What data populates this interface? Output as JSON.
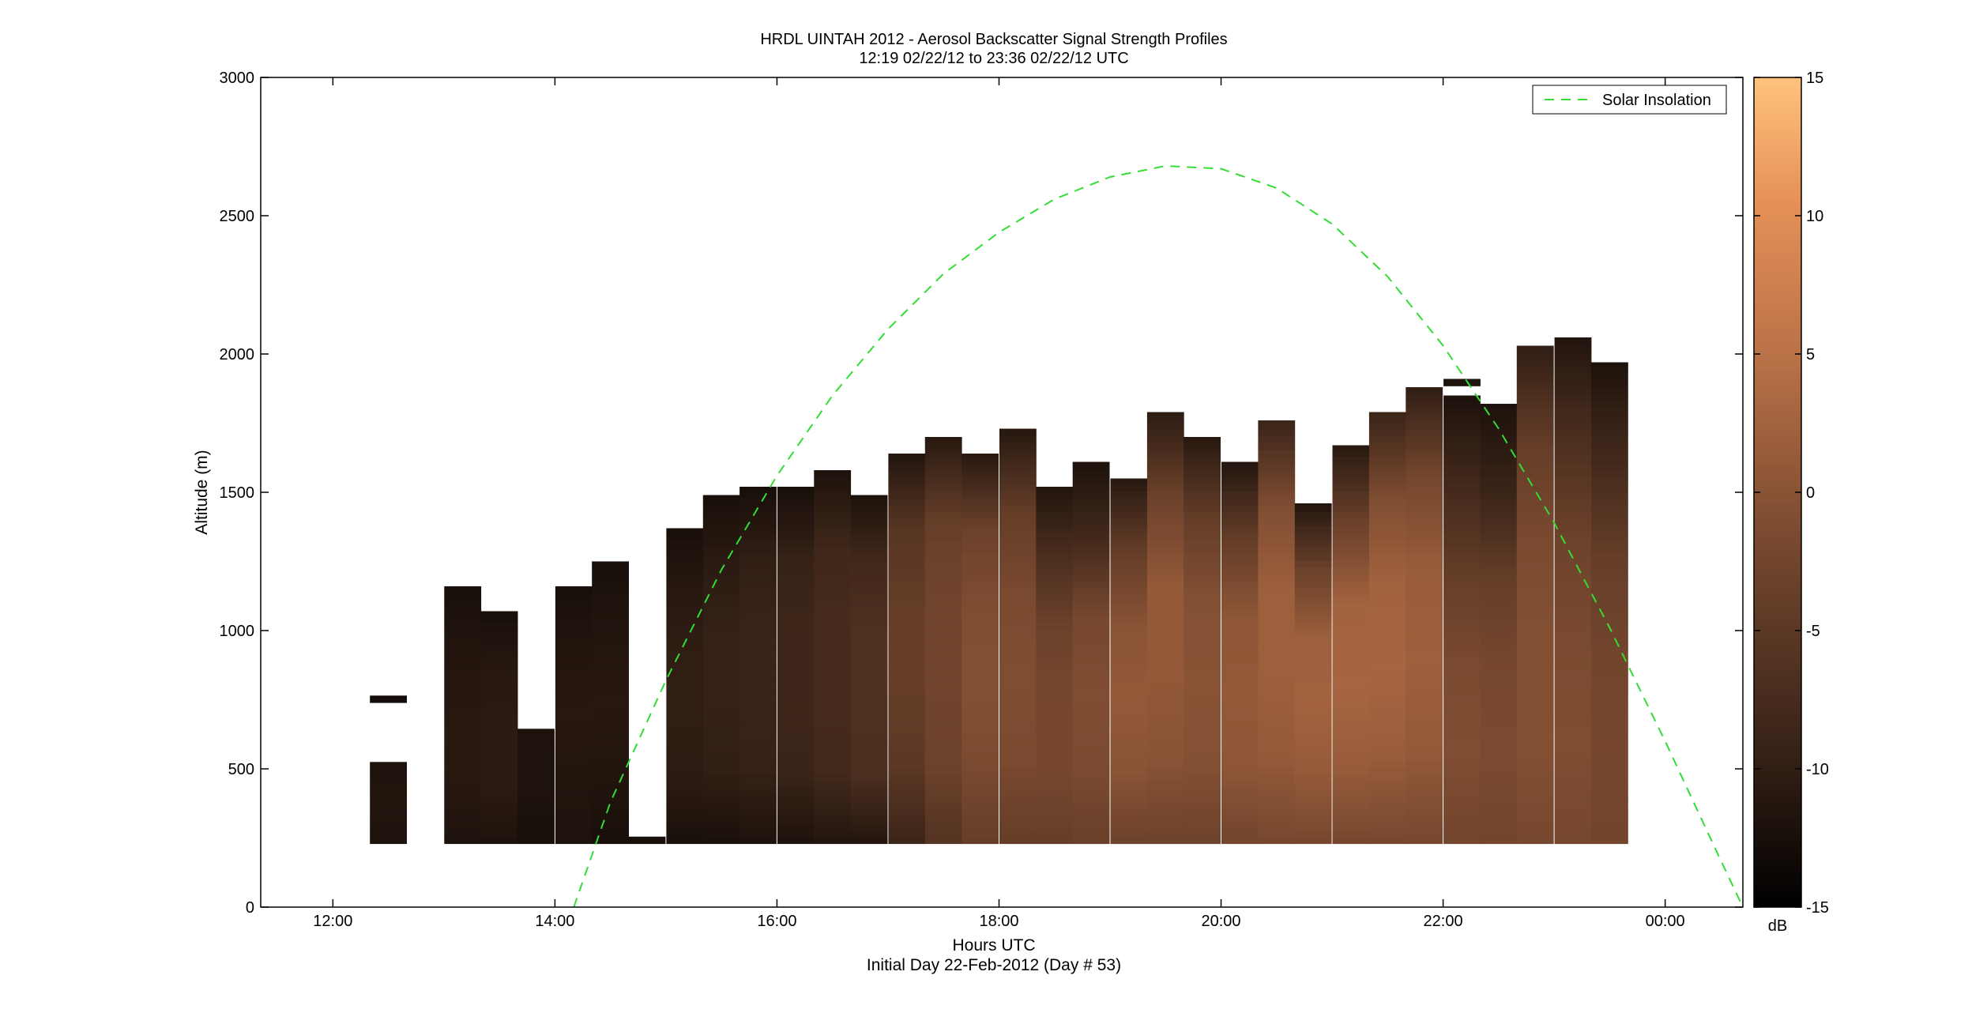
{
  "chart_data": {
    "type": "heatmap",
    "title": "HRDL UINTAH 2012 - Aerosol Backscatter Signal Strength Profiles",
    "subtitle": "12:19 02/22/12 to 23:36 02/22/12  UTC",
    "xlabel": "Hours UTC",
    "xlabel2": "Initial Day 22-Feb-2012 (Day # 53)",
    "ylabel": "Altitude (m)",
    "xlim": [
      11.35,
      24.7
    ],
    "ylim": [
      0,
      3000
    ],
    "x_ticks": [
      {
        "value": 12,
        "label": "12:00"
      },
      {
        "value": 14,
        "label": "14:00"
      },
      {
        "value": 16,
        "label": "16:00"
      },
      {
        "value": 18,
        "label": "18:00"
      },
      {
        "value": 20,
        "label": "20:00"
      },
      {
        "value": 22,
        "label": "22:00"
      },
      {
        "value": 24,
        "label": "00:00"
      }
    ],
    "y_ticks": [
      {
        "value": 0,
        "label": "0"
      },
      {
        "value": 500,
        "label": "500"
      },
      {
        "value": 1000,
        "label": "1000"
      },
      {
        "value": 1500,
        "label": "1500"
      },
      {
        "value": 2000,
        "label": "2000"
      },
      {
        "value": 2500,
        "label": "2500"
      },
      {
        "value": 3000,
        "label": "3000"
      }
    ],
    "colorbar": {
      "label": "dB",
      "range": [
        -15,
        15
      ],
      "ticks": [
        {
          "value": 15,
          "label": "15"
        },
        {
          "value": 10,
          "label": "10"
        },
        {
          "value": 5,
          "label": "5"
        },
        {
          "value": 0,
          "label": "0"
        },
        {
          "value": -5,
          "label": "-5"
        },
        {
          "value": -10,
          "label": "-10"
        },
        {
          "value": -15,
          "label": "-15"
        }
      ],
      "colors": [
        "#000000",
        "#3a2418",
        "#7a4a30",
        "#b66f46",
        "#e59058",
        "#ffc27c"
      ]
    },
    "legend": {
      "placement": "top-right",
      "entry": "Solar Insolation",
      "color": "#33dd33"
    },
    "profile_bottom": 230,
    "profiles": [
      {
        "t": 12.5,
        "top": 525,
        "v": [
          -12,
          -11.5,
          -12
        ]
      },
      {
        "t": 12.5,
        "top": 765,
        "bottom": 740,
        "v": [
          -13
        ]
      },
      {
        "t": 13.17,
        "top": 1160,
        "v": [
          -12,
          -11,
          -11,
          -11.5,
          -12.5
        ]
      },
      {
        "t": 13.5,
        "top": 1070,
        "v": [
          -12,
          -10.5,
          -10.5,
          -11,
          -12.5
        ]
      },
      {
        "t": 13.83,
        "top": 645,
        "v": [
          -12.5,
          -12,
          -12
        ]
      },
      {
        "t": 14.17,
        "top": 1160,
        "v": [
          -12,
          -11.5,
          -11,
          -11.5,
          -12.5
        ]
      },
      {
        "t": 14.5,
        "top": 1250,
        "v": [
          -12.5,
          -11.5,
          -11,
          -11.5,
          -12.5
        ]
      },
      {
        "t": 14.83,
        "top": 255,
        "v": [
          -12.5
        ]
      },
      {
        "t": 15.17,
        "top": 1370,
        "v": [
          -12.5,
          -10.5,
          -10,
          -10,
          -11,
          -12.5
        ]
      },
      {
        "t": 15.5,
        "top": 1490,
        "v": [
          -12.5,
          -10,
          -9.5,
          -9.5,
          -10.5,
          -12.5
        ]
      },
      {
        "t": 15.83,
        "top": 1520,
        "v": [
          -12,
          -9.5,
          -9,
          -9,
          -10,
          -12.5
        ]
      },
      {
        "t": 16.17,
        "top": 1520,
        "v": [
          -12,
          -9,
          -8.5,
          -8.5,
          -9.5,
          -12.5
        ]
      },
      {
        "t": 16.5,
        "top": 1580,
        "v": [
          -11.5,
          -8,
          -7.5,
          -7.5,
          -8.5,
          -12
        ]
      },
      {
        "t": 16.83,
        "top": 1490,
        "v": [
          -11.5,
          -7,
          -6.5,
          -6.5,
          -8,
          -12
        ]
      },
      {
        "t": 17.17,
        "top": 1640,
        "v": [
          -9,
          -5,
          -4,
          -4,
          -5.5,
          -11.5
        ]
      },
      {
        "t": 17.5,
        "top": 1700,
        "v": [
          -6,
          -3,
          -2.5,
          -2.5,
          -4,
          -11
        ]
      },
      {
        "t": 17.83,
        "top": 1640,
        "v": [
          -4,
          -1.5,
          -0.5,
          -1,
          -3,
          -11
        ]
      },
      {
        "t": 18.17,
        "top": 1730,
        "v": [
          -4,
          -1.5,
          -1,
          -1.5,
          -4,
          -11
        ]
      },
      {
        "t": 18.5,
        "top": 1520,
        "v": [
          -4,
          -2,
          -2,
          -3,
          -7,
          -11.5
        ]
      },
      {
        "t": 18.83,
        "top": 1610,
        "v": [
          -3.5,
          -1.5,
          -1,
          -2,
          -8,
          -12
        ]
      },
      {
        "t": 19.17,
        "top": 1550,
        "v": [
          -3,
          0,
          1,
          0,
          -4,
          -11
        ]
      },
      {
        "t": 19.5,
        "top": 1790,
        "v": [
          -3,
          0,
          1,
          1,
          -3,
          -10.5
        ]
      },
      {
        "t": 19.83,
        "top": 1700,
        "v": [
          -3,
          -0.5,
          0,
          -0.5,
          -4,
          -11
        ]
      },
      {
        "t": 20.17,
        "top": 1610,
        "v": [
          -2.5,
          0.5,
          1,
          0.5,
          -4,
          -11.5
        ]
      },
      {
        "t": 20.5,
        "top": 1760,
        "v": [
          -2,
          1,
          2,
          2,
          -1,
          -9
        ]
      },
      {
        "t": 20.83,
        "top": 1460,
        "v": [
          -2,
          1,
          2.5,
          2,
          -3,
          -11.5
        ]
      },
      {
        "t": 21.17,
        "top": 1670,
        "v": [
          -2,
          1.5,
          3,
          2.5,
          -3,
          -11
        ]
      },
      {
        "t": 21.5,
        "top": 1790,
        "v": [
          -2,
          1.5,
          3,
          2.5,
          -1,
          -9
        ]
      },
      {
        "t": 21.83,
        "top": 1880,
        "v": [
          -2,
          1,
          2,
          1.5,
          -2,
          -10
        ]
      },
      {
        "t": 22.17,
        "top": 1850,
        "v": [
          -2.5,
          -1,
          -1.5,
          -4,
          -8,
          -12
        ]
      },
      {
        "t": 22.17,
        "top": 1910,
        "bottom": 1885,
        "v": [
          -12
        ]
      },
      {
        "t": 22.5,
        "top": 1820,
        "v": [
          -2.5,
          -1.5,
          -2,
          -4,
          -9,
          -12
        ]
      },
      {
        "t": 22.83,
        "top": 2030,
        "v": [
          -2,
          -0.5,
          -0.5,
          -1.5,
          -4,
          -10
        ]
      },
      {
        "t": 23.17,
        "top": 2060,
        "v": [
          -2,
          -1,
          -1.5,
          -3,
          -7,
          -11.5
        ]
      },
      {
        "t": 23.5,
        "top": 1970,
        "v": [
          -2.5,
          -2,
          -2.5,
          -4,
          -8,
          -12
        ]
      }
    ],
    "solar_insolation_curve": [
      [
        14.17,
        0
      ],
      [
        14.5,
        380
      ],
      [
        15,
        820
      ],
      [
        15.5,
        1220
      ],
      [
        16,
        1560
      ],
      [
        16.5,
        1850
      ],
      [
        17,
        2090
      ],
      [
        17.5,
        2290
      ],
      [
        18,
        2440
      ],
      [
        18.5,
        2560
      ],
      [
        19,
        2640
      ],
      [
        19.5,
        2680
      ],
      [
        20,
        2670
      ],
      [
        20.5,
        2600
      ],
      [
        21,
        2470
      ],
      [
        21.5,
        2280
      ],
      [
        22,
        2030
      ],
      [
        22.5,
        1730
      ],
      [
        23,
        1390
      ],
      [
        23.5,
        1010
      ],
      [
        24,
        600
      ],
      [
        24.5,
        170
      ],
      [
        24.7,
        0
      ]
    ]
  }
}
